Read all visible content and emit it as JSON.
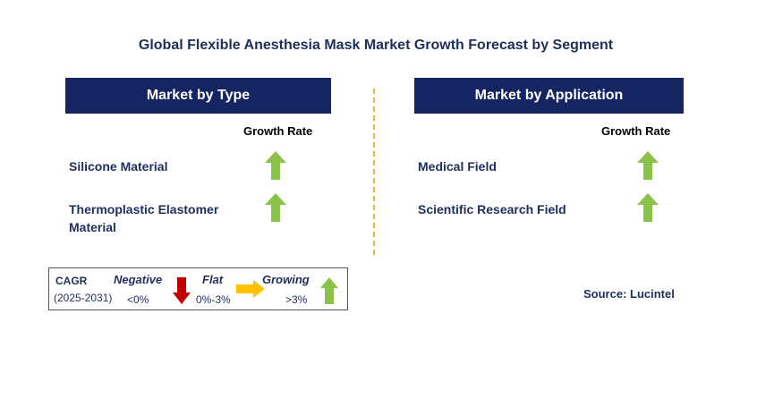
{
  "title": "Global Flexible Anesthesia Mask Market Growth Forecast by Segment",
  "colors": {
    "banner": "#142562",
    "arrow_up": "#8bc34a",
    "arrow_down": "#c00000",
    "arrow_flat": "#ffc000",
    "divider": "#f0b640",
    "text": "#1f2f5c"
  },
  "left_panel": {
    "header": "Market by Type",
    "growth_label": "Growth Rate",
    "items": [
      {
        "label_lines": [
          "Silicone Material"
        ],
        "trend": "growing",
        "icon": "up-arrow-icon"
      },
      {
        "label_lines": [
          "Thermoplastic Elastomer",
          "Material"
        ],
        "trend": "growing",
        "icon": "up-arrow-icon"
      }
    ]
  },
  "right_panel": {
    "header": "Market by Application",
    "growth_label": "Growth Rate",
    "items": [
      {
        "label_lines": [
          "Medical Field"
        ],
        "trend": "growing",
        "icon": "up-arrow-icon"
      },
      {
        "label_lines": [
          "Scientific Research Field"
        ],
        "trend": "growing",
        "icon": "up-arrow-icon"
      }
    ]
  },
  "legend": {
    "cagr_label": "CAGR",
    "period": "(2025-2031)",
    "negative": {
      "label": "Negative",
      "range": "<0%",
      "icon": "down-arrow-icon"
    },
    "flat": {
      "label": "Flat",
      "range": "0%-3%",
      "icon": "right-arrow-icon"
    },
    "growing": {
      "label": "Growing",
      "range": ">3%",
      "icon": "up-arrow-icon"
    }
  },
  "source": "Source: Lucintel"
}
